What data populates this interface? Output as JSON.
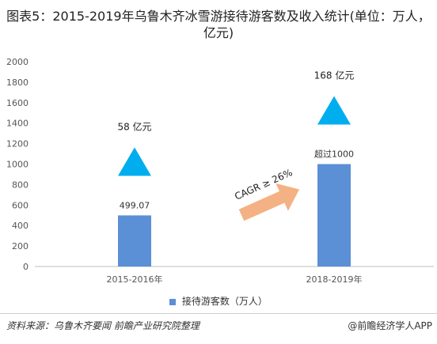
{
  "title": "图表5：2015-2019年乌鲁木齐冰雪游接待游客数及收入统计(单位：万人，亿元)",
  "chart_data": {
    "type": "bar",
    "categories": [
      "2015-2016年",
      "2018-2019年"
    ],
    "series": [
      {
        "name": "接待游客数（万人）",
        "values": [
          499.07,
          1000
        ],
        "labels": [
          "499.07",
          "超过1000"
        ],
        "color": "#5B8FD6"
      }
    ],
    "ylim": [
      0,
      2000
    ],
    "yticks": [
      "0",
      "200",
      "400",
      "600",
      "800",
      "1000",
      "1200",
      "1400",
      "1600",
      "1800",
      "2000"
    ],
    "revenue_labels": [
      "58 亿元",
      "168 亿元"
    ],
    "triangle_color": "#00AEEF",
    "cagr_label": "CAGR ≥ 26%",
    "arrow_color": "#F4B183",
    "legend_placement": "bottom"
  },
  "footer": {
    "source": "资料来源：乌鲁木齐要闻 前瞻产业研究院整理",
    "brand": "@前瞻经济学人APP"
  }
}
